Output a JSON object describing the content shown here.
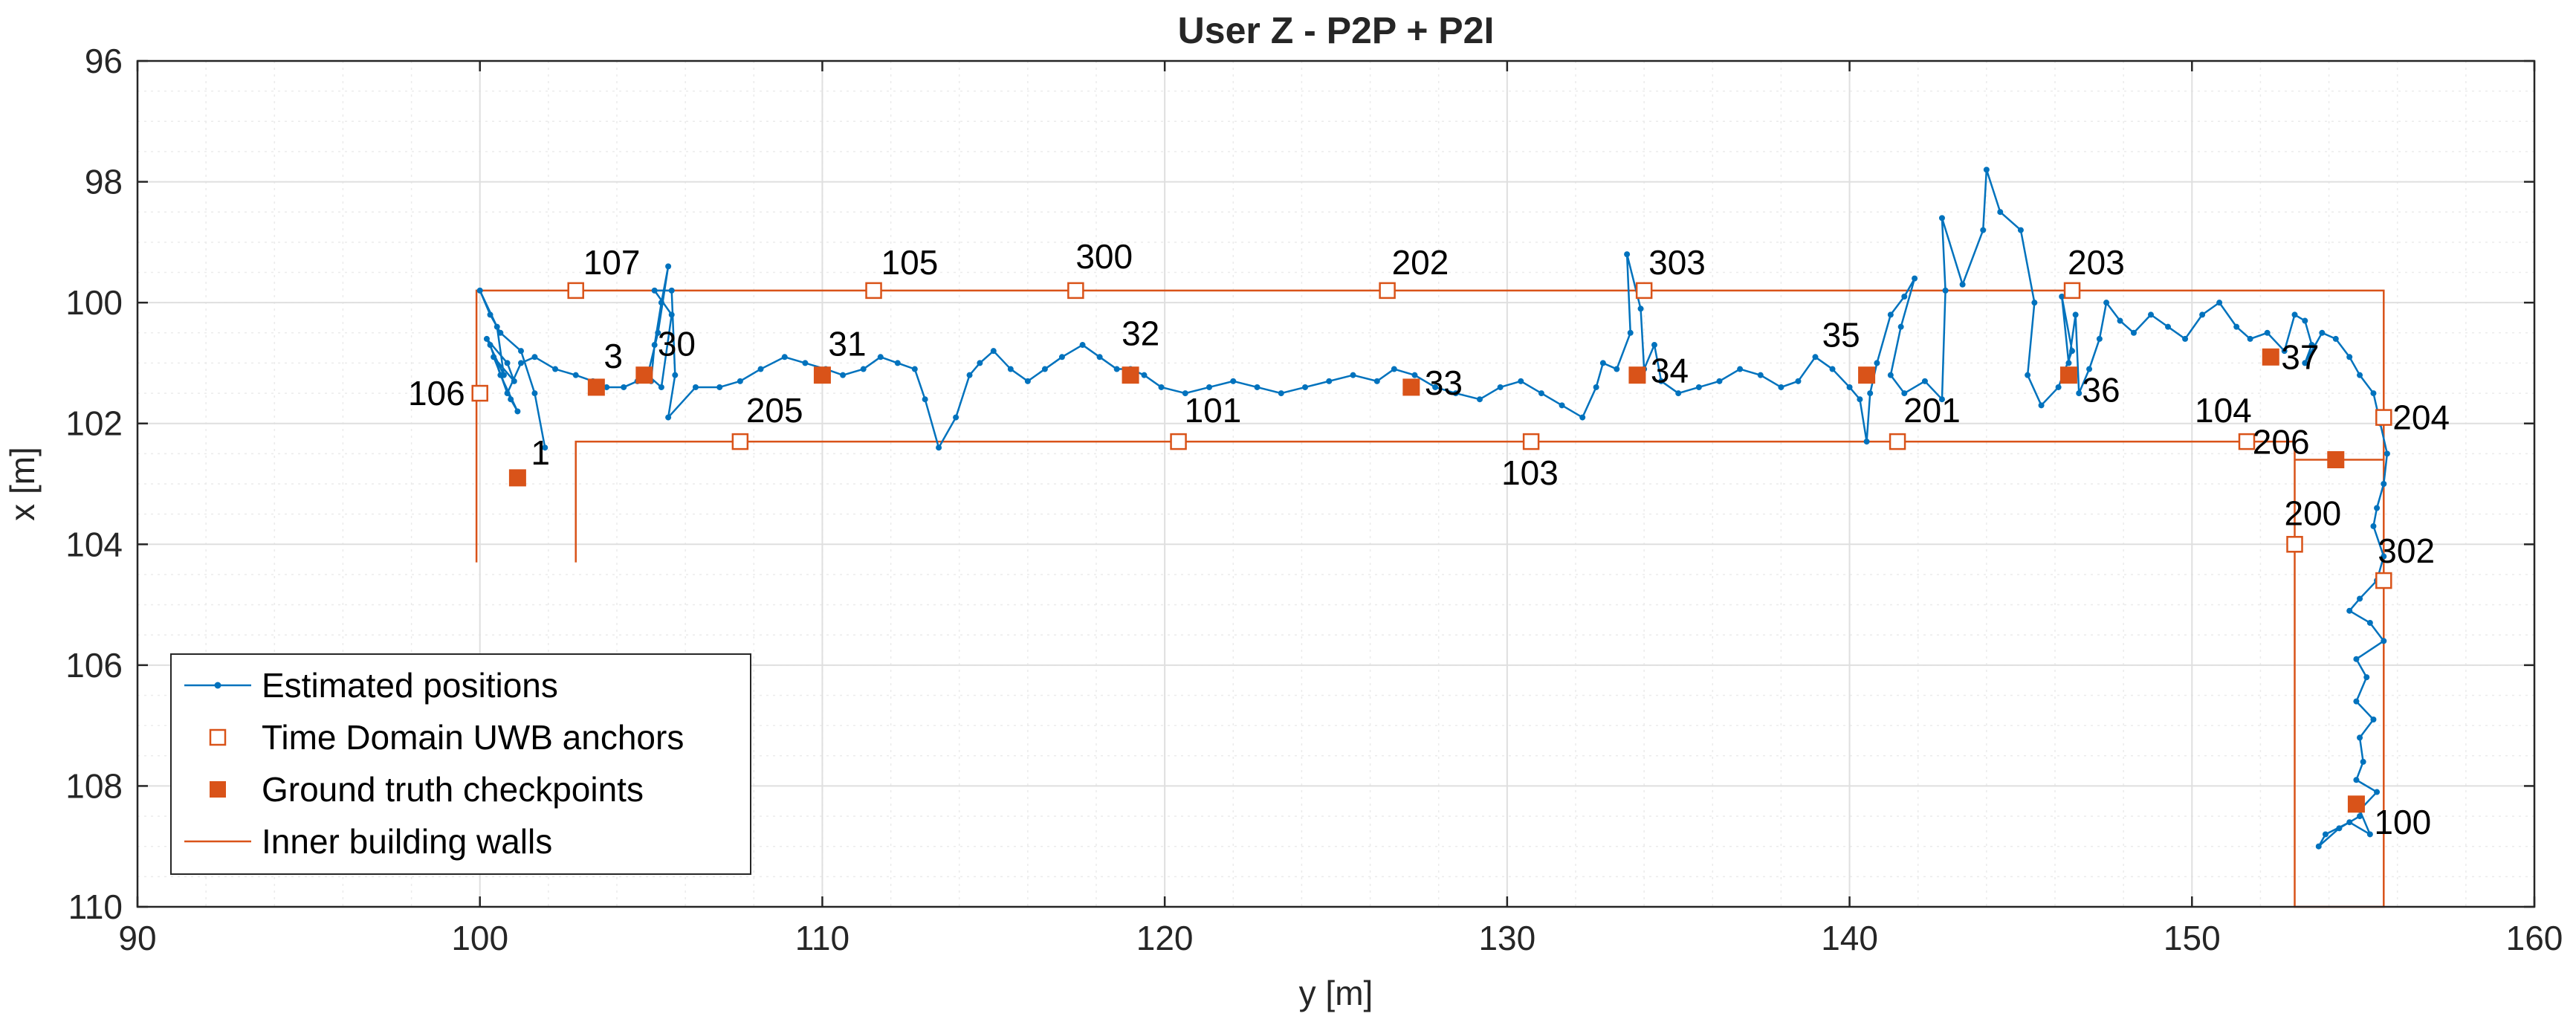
{
  "chart_data": {
    "type": "line",
    "title": "User Z - P2P + P2I",
    "xlabel": "y [m]",
    "ylabel": "x [m]",
    "xlim": [
      90,
      160
    ],
    "ylim": [
      96,
      110
    ],
    "y_reversed": true,
    "x_ticks": [
      90,
      100,
      110,
      120,
      130,
      140,
      150,
      160
    ],
    "y_ticks": [
      96,
      98,
      100,
      102,
      104,
      106,
      108,
      110
    ],
    "x_tick_labels": [
      "90",
      "100",
      "110",
      "120",
      "130",
      "140",
      "150",
      "160"
    ],
    "y_tick_labels": [
      "96",
      "98",
      "100",
      "102",
      "104",
      "106",
      "108",
      "110"
    ],
    "grid": true,
    "minor_grid": true,
    "legend_position": "bottom-left",
    "colors": {
      "estimate": "#0072BD",
      "anchor": "#D95319",
      "truth": "#D95319",
      "wall": "#D95319",
      "axis": "#262626",
      "grid": "#dfdfdf"
    },
    "legend": [
      {
        "label": "Estimated positions",
        "kind": "estimate"
      },
      {
        "label": "Time Domain UWB anchors",
        "kind": "anchor"
      },
      {
        "label": "Ground truth checkpoints",
        "kind": "truth"
      },
      {
        "label": "Inner building walls",
        "kind": "wall"
      }
    ],
    "series": [
      {
        "name": "Estimated positions",
        "points": [
          [
            101.9,
            102.4
          ],
          [
            101.6,
            101.5
          ],
          [
            101.2,
            100.8
          ],
          [
            100.6,
            100.5
          ],
          [
            100.3,
            100.2
          ],
          [
            100.0,
            99.8
          ],
          [
            100.5,
            100.4
          ],
          [
            100.7,
            101.2
          ],
          [
            100.2,
            100.6
          ],
          [
            100.8,
            101.0
          ],
          [
            101.0,
            101.3
          ],
          [
            100.4,
            100.9
          ],
          [
            100.9,
            101.6
          ],
          [
            101.1,
            101.8
          ],
          [
            100.6,
            101.2
          ],
          [
            100.3,
            100.7
          ],
          [
            100.8,
            101.5
          ],
          [
            101.2,
            101.0
          ],
          [
            101.6,
            100.9
          ],
          [
            102.2,
            101.1
          ],
          [
            102.8,
            101.2
          ],
          [
            103.3,
            101.3
          ],
          [
            103.7,
            101.4
          ],
          [
            104.2,
            101.4
          ],
          [
            104.6,
            101.3
          ],
          [
            105.0,
            101.3
          ],
          [
            105.1,
            100.7
          ],
          [
            105.3,
            100.0
          ],
          [
            105.5,
            99.4
          ],
          [
            105.2,
            100.5
          ],
          [
            104.9,
            101.2
          ],
          [
            105.3,
            101.4
          ],
          [
            105.6,
            100.2
          ],
          [
            105.1,
            99.8
          ],
          [
            105.6,
            99.8
          ],
          [
            105.7,
            101.2
          ],
          [
            105.5,
            101.9
          ],
          [
            106.3,
            101.4
          ],
          [
            107.0,
            101.4
          ],
          [
            107.6,
            101.3
          ],
          [
            108.2,
            101.1
          ],
          [
            108.9,
            100.9
          ],
          [
            109.5,
            101.0
          ],
          [
            110.1,
            101.1
          ],
          [
            110.6,
            101.2
          ],
          [
            111.2,
            101.1
          ],
          [
            111.7,
            100.9
          ],
          [
            112.2,
            101.0
          ],
          [
            112.7,
            101.1
          ],
          [
            113.0,
            101.6
          ],
          [
            113.4,
            102.4
          ],
          [
            113.9,
            101.9
          ],
          [
            114.3,
            101.2
          ],
          [
            114.6,
            101.0
          ],
          [
            115.0,
            100.8
          ],
          [
            115.5,
            101.1
          ],
          [
            116.0,
            101.3
          ],
          [
            116.5,
            101.1
          ],
          [
            117.0,
            100.9
          ],
          [
            117.6,
            100.7
          ],
          [
            118.1,
            100.9
          ],
          [
            118.6,
            101.1
          ],
          [
            119.0,
            101.1
          ],
          [
            119.4,
            101.2
          ],
          [
            119.9,
            101.4
          ],
          [
            120.6,
            101.5
          ],
          [
            121.3,
            101.4
          ],
          [
            122.0,
            101.3
          ],
          [
            122.7,
            101.4
          ],
          [
            123.4,
            101.5
          ],
          [
            124.1,
            101.4
          ],
          [
            124.8,
            101.3
          ],
          [
            125.5,
            101.2
          ],
          [
            126.2,
            101.3
          ],
          [
            126.7,
            101.1
          ],
          [
            127.3,
            101.2
          ],
          [
            127.9,
            101.4
          ],
          [
            128.5,
            101.5
          ],
          [
            129.2,
            101.6
          ],
          [
            129.8,
            101.4
          ],
          [
            130.4,
            101.3
          ],
          [
            131.0,
            101.5
          ],
          [
            131.6,
            101.7
          ],
          [
            132.2,
            101.9
          ],
          [
            132.6,
            101.4
          ],
          [
            132.8,
            101.0
          ],
          [
            133.2,
            101.1
          ],
          [
            133.6,
            100.5
          ],
          [
            133.5,
            99.2
          ],
          [
            133.9,
            100.1
          ],
          [
            134.0,
            101.1
          ],
          [
            134.3,
            100.7
          ],
          [
            134.5,
            101.3
          ],
          [
            135.0,
            101.5
          ],
          [
            135.6,
            101.4
          ],
          [
            136.2,
            101.3
          ],
          [
            136.8,
            101.1
          ],
          [
            137.4,
            101.2
          ],
          [
            138.0,
            101.4
          ],
          [
            138.5,
            101.3
          ],
          [
            139.0,
            100.9
          ],
          [
            139.5,
            101.1
          ],
          [
            140.0,
            101.4
          ],
          [
            140.3,
            101.6
          ],
          [
            140.5,
            102.3
          ],
          [
            140.6,
            101.5
          ],
          [
            140.8,
            101.0
          ],
          [
            141.2,
            100.2
          ],
          [
            141.6,
            99.9
          ],
          [
            141.9,
            99.6
          ],
          [
            141.5,
            100.4
          ],
          [
            141.2,
            101.2
          ],
          [
            141.6,
            101.5
          ],
          [
            142.2,
            101.3
          ],
          [
            142.7,
            101.6
          ],
          [
            142.8,
            99.8
          ],
          [
            142.7,
            98.6
          ],
          [
            143.3,
            99.7
          ],
          [
            143.9,
            98.8
          ],
          [
            144.0,
            97.8
          ],
          [
            144.4,
            98.5
          ],
          [
            145.0,
            98.8
          ],
          [
            145.4,
            100.0
          ],
          [
            145.2,
            101.2
          ],
          [
            145.6,
            101.7
          ],
          [
            146.1,
            101.4
          ],
          [
            146.5,
            100.8
          ],
          [
            146.2,
            99.9
          ],
          [
            146.4,
            101.0
          ],
          [
            146.6,
            100.2
          ],
          [
            146.7,
            101.5
          ],
          [
            147.0,
            101.1
          ],
          [
            147.3,
            100.6
          ],
          [
            147.5,
            100.0
          ],
          [
            147.9,
            100.3
          ],
          [
            148.3,
            100.5
          ],
          [
            148.8,
            100.2
          ],
          [
            149.3,
            100.4
          ],
          [
            149.8,
            100.6
          ],
          [
            150.3,
            100.2
          ],
          [
            150.8,
            100.0
          ],
          [
            151.3,
            100.4
          ],
          [
            151.7,
            100.6
          ],
          [
            152.2,
            100.5
          ],
          [
            152.7,
            100.8
          ],
          [
            153.0,
            100.2
          ],
          [
            153.3,
            100.3
          ],
          [
            153.5,
            100.7
          ],
          [
            153.3,
            101.0
          ],
          [
            153.8,
            100.5
          ],
          [
            154.2,
            100.6
          ],
          [
            154.6,
            100.9
          ],
          [
            154.9,
            101.2
          ],
          [
            155.3,
            101.5
          ],
          [
            155.5,
            102.0
          ],
          [
            155.7,
            102.5
          ],
          [
            155.6,
            103.0
          ],
          [
            155.4,
            103.4
          ],
          [
            155.3,
            103.7
          ],
          [
            155.6,
            104.2
          ],
          [
            155.4,
            104.6
          ],
          [
            154.9,
            104.9
          ],
          [
            154.6,
            105.1
          ],
          [
            155.2,
            105.3
          ],
          [
            155.6,
            105.6
          ],
          [
            154.8,
            105.9
          ],
          [
            155.1,
            106.2
          ],
          [
            154.8,
            106.6
          ],
          [
            155.3,
            106.9
          ],
          [
            154.9,
            107.2
          ],
          [
            155.0,
            107.6
          ],
          [
            154.8,
            107.9
          ],
          [
            155.4,
            108.1
          ],
          [
            154.9,
            108.4
          ],
          [
            155.2,
            108.8
          ],
          [
            154.6,
            108.6
          ],
          [
            153.9,
            108.8
          ],
          [
            153.7,
            109.0
          ],
          [
            154.3,
            108.7
          ],
          [
            154.9,
            108.5
          ]
        ]
      }
    ],
    "anchors": [
      {
        "label": "107",
        "y": 102.8,
        "x": 99.8
      },
      {
        "label": "105",
        "y": 111.5,
        "x": 99.8
      },
      {
        "label": "300",
        "y": 117.4,
        "x": 99.8
      },
      {
        "label": "202",
        "y": 126.5,
        "x": 99.8
      },
      {
        "label": "303",
        "y": 134.0,
        "x": 99.8
      },
      {
        "label": "203",
        "y": 146.5,
        "x": 99.8
      },
      {
        "label": "106",
        "y": 100.0,
        "x": 101.5
      },
      {
        "label": "205",
        "y": 107.6,
        "x": 102.3
      },
      {
        "label": "101",
        "y": 120.4,
        "x": 102.3
      },
      {
        "label": "103",
        "y": 130.7,
        "x": 102.3
      },
      {
        "label": "201",
        "y": 141.4,
        "x": 102.3
      },
      {
        "label": "104",
        "y": 151.6,
        "x": 102.3
      },
      {
        "label": "204",
        "y": 155.6,
        "x": 101.9
      },
      {
        "label": "200",
        "y": 153.0,
        "x": 104.0
      },
      {
        "label": "302",
        "y": 155.6,
        "x": 104.6
      }
    ],
    "checkpoints": [
      {
        "label": "1",
        "y": 101.1,
        "x": 102.9
      },
      {
        "label": "3",
        "y": 103.4,
        "x": 101.4
      },
      {
        "label": "30",
        "y": 104.8,
        "x": 101.2
      },
      {
        "label": "31",
        "y": 110.0,
        "x": 101.2
      },
      {
        "label": "32",
        "y": 119.0,
        "x": 101.2
      },
      {
        "label": "33",
        "y": 127.2,
        "x": 101.4
      },
      {
        "label": "34",
        "y": 133.8,
        "x": 101.2
      },
      {
        "label": "35",
        "y": 140.5,
        "x": 101.2
      },
      {
        "label": "36",
        "y": 146.4,
        "x": 101.2
      },
      {
        "label": "37",
        "y": 152.3,
        "x": 100.9
      },
      {
        "label": "206",
        "y": 154.2,
        "x": 102.6
      },
      {
        "label": "100",
        "y": 154.8,
        "x": 108.3
      }
    ],
    "walls": [
      [
        [
          99.9,
          104.3
        ],
        [
          99.9,
          99.8
        ],
        [
          155.6,
          99.8
        ],
        [
          155.6,
          110.0
        ],
        [
          153.0,
          110.0
        ],
        [
          153.0,
          102.3
        ],
        [
          102.8,
          102.3
        ],
        [
          102.8,
          104.3
        ]
      ],
      [
        [
          153.0,
          102.6
        ],
        [
          155.6,
          102.6
        ]
      ]
    ]
  }
}
